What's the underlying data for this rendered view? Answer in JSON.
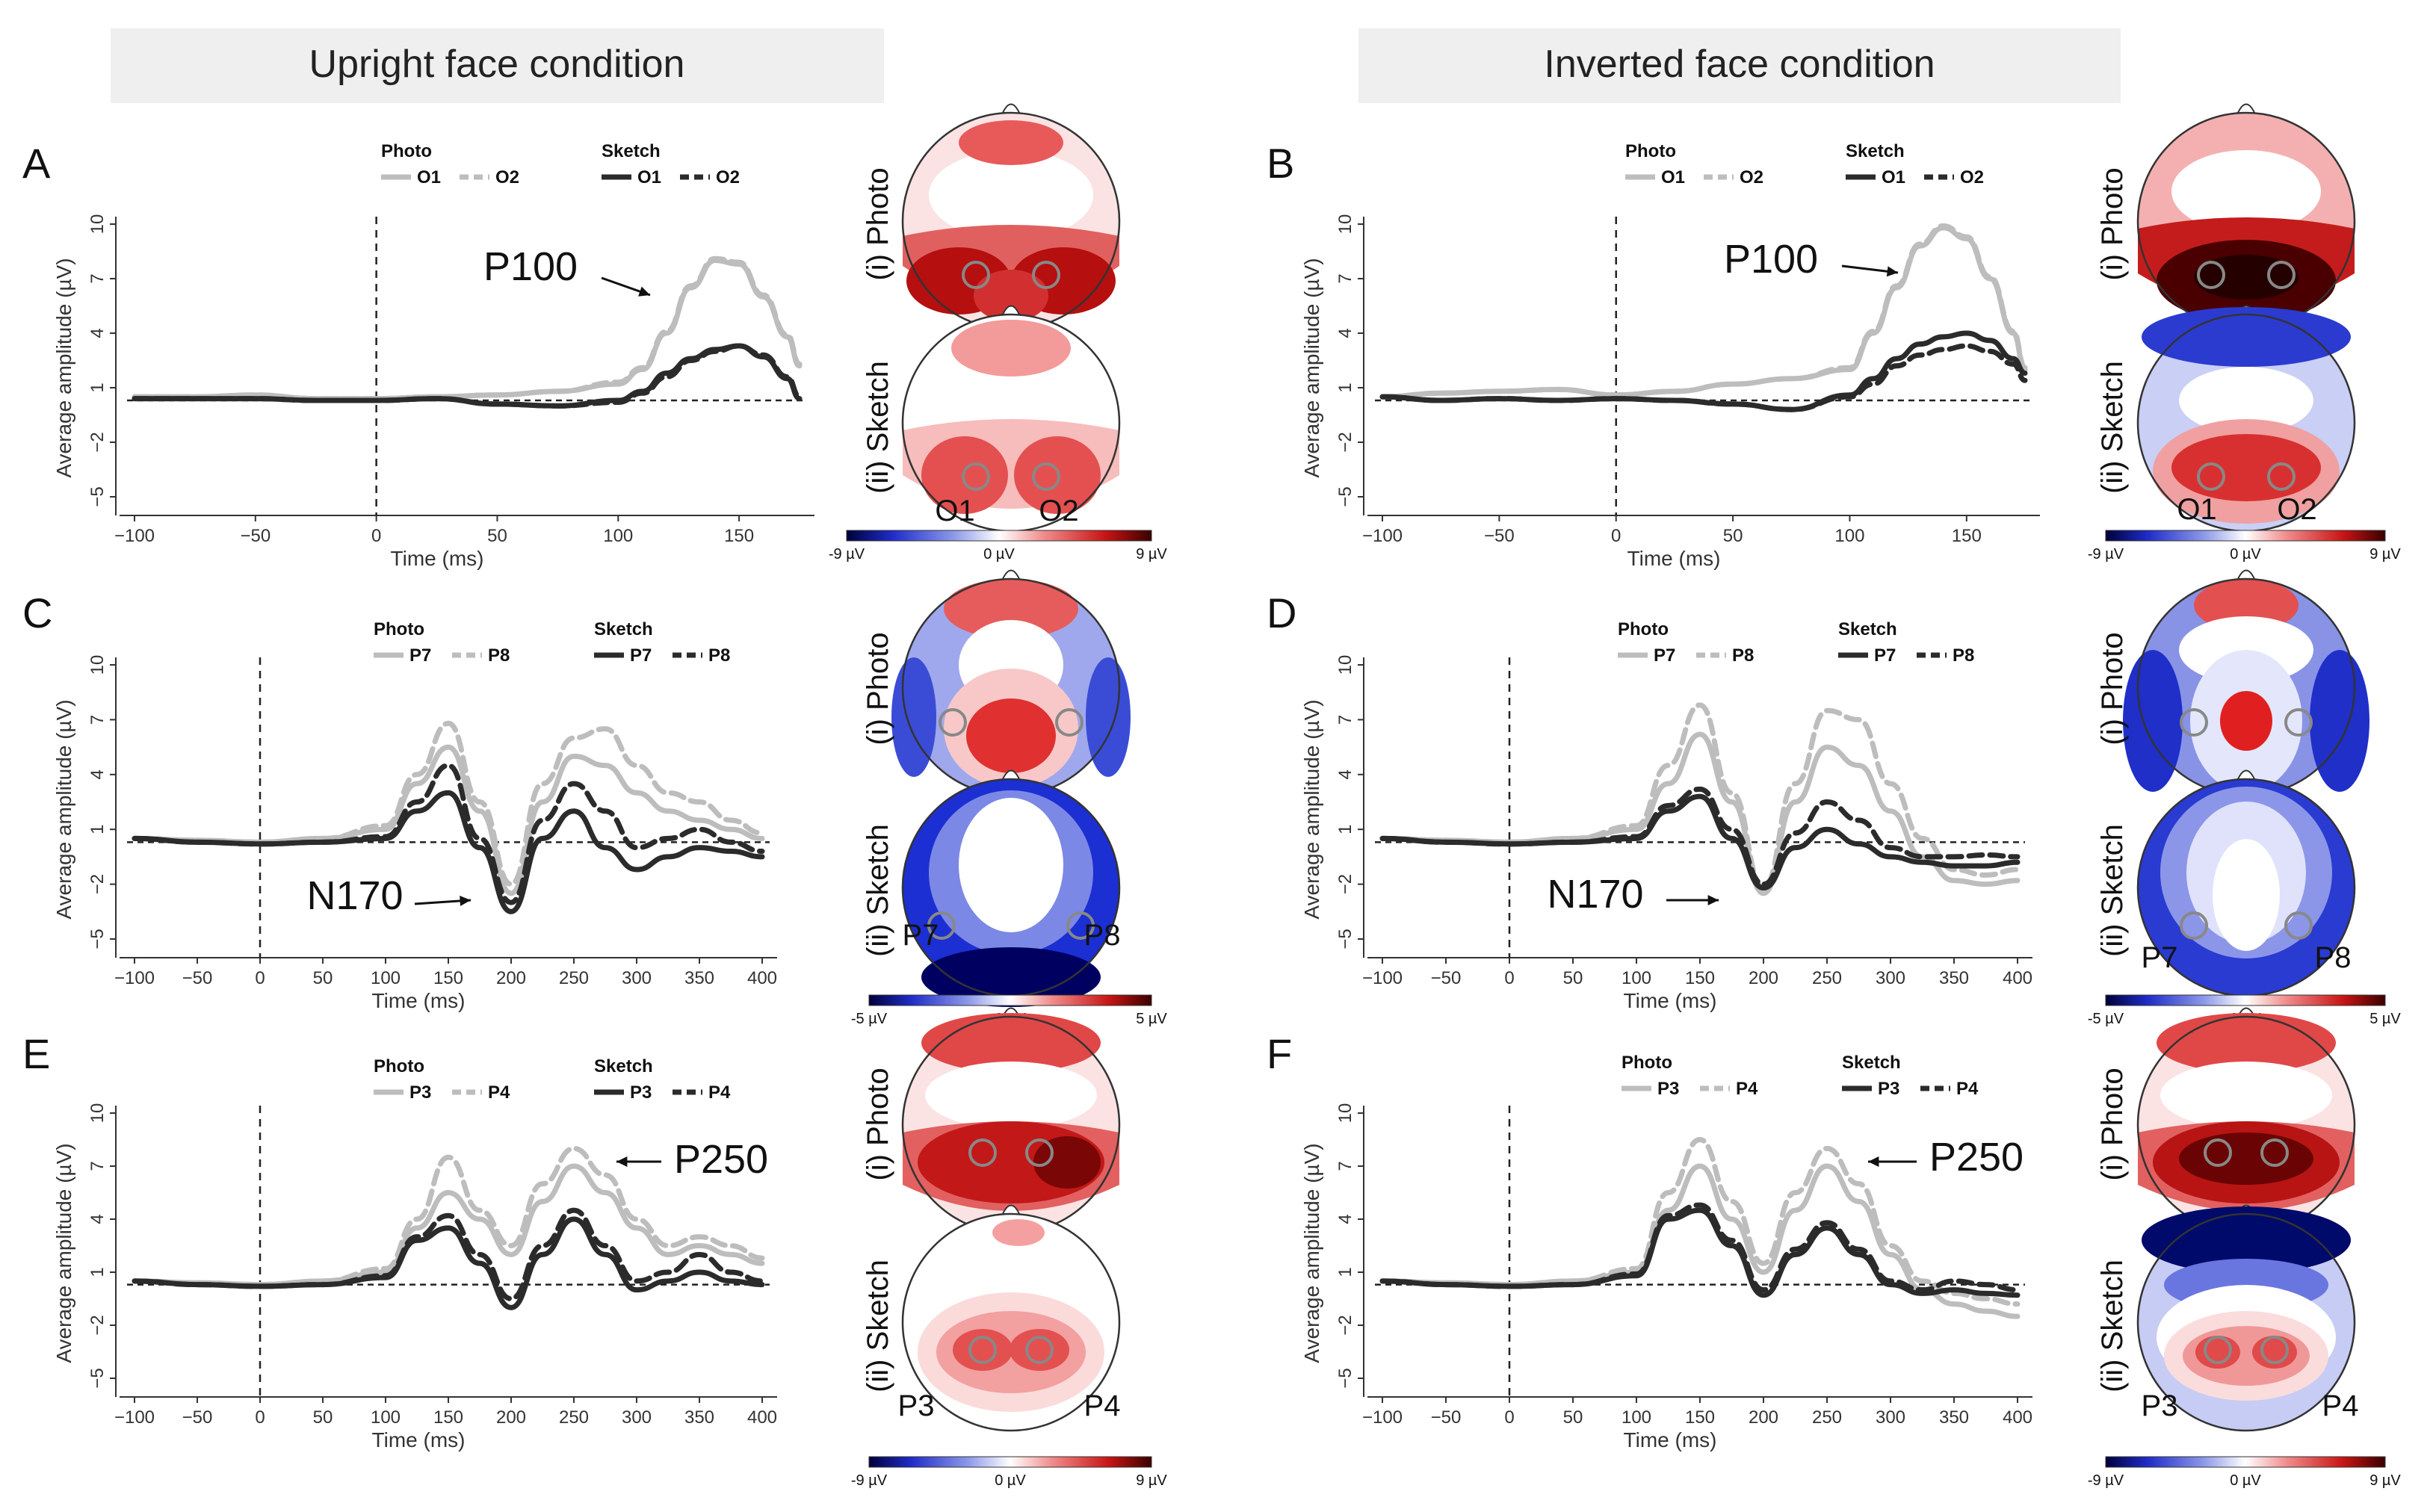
{
  "conditions": [
    "Upright face condition",
    "Inverted face condition"
  ],
  "colorbars": [
    {
      "min": "-9 µV",
      "mid": "0 µV",
      "max": "9 µV"
    },
    {
      "min": "-5 µV",
      "mid": "0 µV",
      "max": "5 µV"
    }
  ],
  "colors": {
    "photo": "#bdbdbd",
    "sketch": "#2b2b2b",
    "condition_band": "#efefef"
  },
  "headmap_labels": {
    "photo": "(i) Photo",
    "sketch": "(ii) Sketch"
  },
  "chart_data": [
    {
      "id": "A",
      "type": "line",
      "condition": "Upright face condition",
      "peak_label": "P100",
      "xlabel": "Time (ms)",
      "ylabel": "Average amplitude  (µV)",
      "xlim": [
        -100,
        175
      ],
      "ylim": [
        -5,
        10
      ],
      "xticks": [
        "-100",
        "-50",
        "0",
        "50",
        "100",
        "150"
      ],
      "yticks": [
        "-5",
        "-2",
        "1",
        "4",
        "7",
        "10"
      ],
      "legend": {
        "group1": "Photo",
        "group2": "Sketch",
        "electrodes": [
          "O1",
          "O2"
        ]
      },
      "electrodes": [
        "O1",
        "O2"
      ],
      "x": [
        -100,
        -75,
        -50,
        -25,
        0,
        25,
        50,
        75,
        100,
        110,
        120,
        130,
        140,
        150,
        160,
        170,
        175
      ],
      "series": [
        {
          "name": "O1",
          "group": "Photo",
          "values": [
            0.5,
            0.5,
            0.6,
            0.4,
            0.4,
            0.5,
            0.6,
            0.8,
            1.2,
            2.0,
            4.0,
            6.5,
            8.0,
            7.8,
            6.0,
            3.8,
            2.2
          ]
        },
        {
          "name": "O2",
          "group": "Photo",
          "values": [
            0.5,
            0.5,
            0.6,
            0.4,
            0.4,
            0.5,
            0.6,
            0.8,
            1.3,
            2.1,
            4.1,
            6.6,
            8.1,
            7.9,
            6.1,
            3.9,
            2.3
          ]
        },
        {
          "name": "O1",
          "group": "Sketch",
          "values": [
            0.4,
            0.4,
            0.4,
            0.3,
            0.3,
            0.4,
            0.1,
            0.0,
            0.3,
            0.8,
            1.8,
            2.6,
            3.1,
            3.3,
            2.7,
            1.5,
            0.4
          ]
        },
        {
          "name": "O2",
          "group": "Sketch",
          "values": [
            0.4,
            0.4,
            0.4,
            0.3,
            0.3,
            0.4,
            0.1,
            0.0,
            0.2,
            0.7,
            1.6,
            2.5,
            3.0,
            3.3,
            2.8,
            1.6,
            0.5
          ]
        }
      ]
    },
    {
      "id": "B",
      "type": "line",
      "condition": "Inverted face condition",
      "peak_label": "P100",
      "xlabel": "Time (ms)",
      "ylabel": "Average amplitude  (µV)",
      "xlim": [
        -100,
        175
      ],
      "ylim": [
        -5,
        10
      ],
      "xticks": [
        "-100",
        "-50",
        "0",
        "50",
        "100",
        "150"
      ],
      "yticks": [
        "-5",
        "-2",
        "1",
        "4",
        "7",
        "10"
      ],
      "legend": {
        "group1": "Photo",
        "group2": "Sketch",
        "electrodes": [
          "O1",
          "O2"
        ]
      },
      "electrodes": [
        "O1",
        "O2"
      ],
      "x": [
        -100,
        -75,
        -50,
        -25,
        0,
        25,
        50,
        75,
        100,
        110,
        120,
        130,
        140,
        150,
        160,
        170,
        175
      ],
      "series": [
        {
          "name": "O1",
          "group": "Photo",
          "values": [
            0.5,
            0.7,
            0.8,
            0.9,
            0.6,
            0.8,
            1.2,
            1.5,
            2.0,
            4.0,
            6.5,
            8.8,
            9.8,
            9.2,
            7.0,
            4.0,
            2.0
          ]
        },
        {
          "name": "O2",
          "group": "Photo",
          "values": [
            0.5,
            0.7,
            0.8,
            0.9,
            0.6,
            0.8,
            1.2,
            1.5,
            2.1,
            4.1,
            6.6,
            8.9,
            9.9,
            9.3,
            7.1,
            4.1,
            2.1
          ]
        },
        {
          "name": "O1",
          "group": "Sketch",
          "values": [
            0.5,
            0.3,
            0.4,
            0.3,
            0.4,
            0.3,
            0.1,
            -0.2,
            0.6,
            1.5,
            2.6,
            3.4,
            3.8,
            4.0,
            3.6,
            2.6,
            1.8
          ]
        },
        {
          "name": "O2",
          "group": "Sketch",
          "values": [
            0.5,
            0.3,
            0.4,
            0.3,
            0.4,
            0.3,
            0.1,
            -0.2,
            0.5,
            1.2,
            2.2,
            2.8,
            3.1,
            3.3,
            3.0,
            2.3,
            1.4
          ]
        }
      ]
    },
    {
      "id": "C",
      "type": "line",
      "condition": "Upright face condition",
      "peak_label": "N170",
      "xlabel": "Time (ms)",
      "ylabel": "Average amplitude  (µV)",
      "xlim": [
        -100,
        400
      ],
      "ylim": [
        -5,
        10
      ],
      "xticks": [
        "-100",
        "-50",
        "0",
        "50",
        "100",
        "150",
        "200",
        "250",
        "300",
        "350",
        "400"
      ],
      "yticks": [
        "-5",
        "-2",
        "1",
        "4",
        "7",
        "10"
      ],
      "legend": {
        "group1": "Photo",
        "group2": "Sketch",
        "electrodes": [
          "P7",
          "P8"
        ]
      },
      "electrodes": [
        "P7",
        "P8"
      ],
      "x": [
        -100,
        -50,
        0,
        50,
        100,
        125,
        150,
        175,
        200,
        225,
        250,
        275,
        300,
        325,
        350,
        375,
        400
      ],
      "series": [
        {
          "name": "P7",
          "group": "Photo",
          "values": [
            0.5,
            0.4,
            0.3,
            0.5,
            1.0,
            3.5,
            5.5,
            2.0,
            -2.5,
            2.5,
            5.0,
            4.5,
            3.0,
            2.0,
            1.5,
            1.0,
            0.5
          ]
        },
        {
          "name": "P8",
          "group": "Photo",
          "values": [
            0.5,
            0.4,
            0.3,
            0.5,
            1.2,
            4.0,
            6.8,
            2.5,
            -2.0,
            3.5,
            6.0,
            6.5,
            4.5,
            3.0,
            2.5,
            1.5,
            0.8
          ]
        },
        {
          "name": "P7",
          "group": "Sketch",
          "values": [
            0.5,
            0.3,
            0.2,
            0.3,
            0.5,
            2.0,
            3.0,
            0.0,
            -3.5,
            0.5,
            2.0,
            0.0,
            -1.2,
            -0.5,
            0.0,
            -0.2,
            -0.5
          ]
        },
        {
          "name": "P8",
          "group": "Sketch",
          "values": [
            0.5,
            0.3,
            0.2,
            0.3,
            0.6,
            2.5,
            4.5,
            0.5,
            -3.0,
            1.5,
            3.5,
            2.0,
            0.0,
            0.5,
            1.0,
            0.3,
            -0.2
          ]
        }
      ]
    },
    {
      "id": "D",
      "type": "line",
      "condition": "Inverted face condition",
      "peak_label": "N170",
      "xlabel": "Time (ms)",
      "ylabel": "Average amplitude  (µV)",
      "xlim": [
        -100,
        400
      ],
      "ylim": [
        -5,
        10
      ],
      "xticks": [
        "-100",
        "-50",
        "0",
        "50",
        "100",
        "150",
        "200",
        "250",
        "300",
        "350",
        "400"
      ],
      "yticks": [
        "-5",
        "-2",
        "1",
        "4",
        "7",
        "10"
      ],
      "legend": {
        "group1": "Photo",
        "group2": "Sketch",
        "electrodes": [
          "P7",
          "P8"
        ]
      },
      "electrodes": [
        "P7",
        "P8"
      ],
      "x": [
        -100,
        -50,
        0,
        50,
        100,
        125,
        150,
        175,
        200,
        225,
        250,
        275,
        300,
        325,
        350,
        375,
        400
      ],
      "series": [
        {
          "name": "P7",
          "group": "Photo",
          "values": [
            0.5,
            0.4,
            0.3,
            0.5,
            1.0,
            3.5,
            6.2,
            2.5,
            -2.5,
            2.5,
            5.5,
            4.5,
            2.0,
            -0.5,
            -1.8,
            -2.0,
            -1.8
          ]
        },
        {
          "name": "P8",
          "group": "Photo",
          "values": [
            0.5,
            0.4,
            0.3,
            0.5,
            1.2,
            4.5,
            7.8,
            3.0,
            -2.2,
            3.5,
            7.5,
            7.0,
            3.5,
            0.5,
            -1.2,
            -1.5,
            -1.2
          ]
        },
        {
          "name": "P7",
          "group": "Sketch",
          "values": [
            0.5,
            0.3,
            0.2,
            0.3,
            0.5,
            2.0,
            2.8,
            0.5,
            -2.2,
            0.0,
            1.0,
            0.2,
            -0.5,
            -0.8,
            -1.0,
            -1.0,
            -0.8
          ]
        },
        {
          "name": "P8",
          "group": "Sketch",
          "values": [
            0.5,
            0.3,
            0.2,
            0.3,
            0.6,
            2.3,
            3.2,
            1.0,
            -2.0,
            0.8,
            2.5,
            1.5,
            0.0,
            -0.5,
            -0.5,
            -0.4,
            -0.5
          ]
        }
      ]
    },
    {
      "id": "E",
      "type": "line",
      "condition": "Upright face condition",
      "peak_label": "P250",
      "xlabel": "Time (ms)",
      "ylabel": "Average amplitude  (µV)",
      "xlim": [
        -100,
        400
      ],
      "ylim": [
        -5,
        10
      ],
      "xticks": [
        "-100",
        "-50",
        "0",
        "50",
        "100",
        "150",
        "200",
        "250",
        "300",
        "350",
        "400"
      ],
      "yticks": [
        "-5",
        "-2",
        "1",
        "4",
        "7",
        "10"
      ],
      "legend": {
        "group1": "Photo",
        "group2": "Sketch",
        "electrodes": [
          "P3",
          "P4"
        ]
      },
      "electrodes": [
        "P3",
        "P4"
      ],
      "x": [
        -100,
        -50,
        0,
        50,
        100,
        125,
        150,
        175,
        200,
        225,
        250,
        275,
        300,
        325,
        350,
        375,
        400
      ],
      "series": [
        {
          "name": "P3",
          "group": "Photo",
          "values": [
            0.5,
            0.4,
            0.3,
            0.5,
            1.0,
            3.5,
            5.5,
            4.0,
            2.0,
            5.0,
            7.0,
            5.5,
            3.5,
            2.0,
            2.5,
            2.0,
            1.5
          ]
        },
        {
          "name": "P4",
          "group": "Photo",
          "values": [
            0.5,
            0.4,
            0.3,
            0.5,
            1.2,
            4.0,
            7.5,
            4.5,
            2.5,
            6.0,
            8.0,
            6.5,
            4.0,
            2.5,
            3.0,
            2.5,
            1.8
          ]
        },
        {
          "name": "P3",
          "group": "Sketch",
          "values": [
            0.5,
            0.3,
            0.2,
            0.3,
            0.7,
            2.8,
            3.5,
            1.5,
            -1.0,
            2.0,
            4.0,
            2.0,
            0.0,
            0.5,
            1.0,
            0.5,
            0.3
          ]
        },
        {
          "name": "P4",
          "group": "Sketch",
          "values": [
            0.5,
            0.3,
            0.2,
            0.3,
            0.8,
            3.0,
            4.2,
            2.0,
            -0.5,
            2.5,
            4.5,
            2.5,
            0.5,
            1.0,
            2.0,
            1.0,
            0.5
          ]
        }
      ]
    },
    {
      "id": "F",
      "type": "line",
      "condition": "Inverted face condition",
      "peak_label": "P250",
      "xlabel": "Time (ms)",
      "ylabel": "Average amplitude  (µV)",
      "xlim": [
        -100,
        400
      ],
      "ylim": [
        -5,
        10
      ],
      "xticks": [
        "-100",
        "-50",
        "0",
        "50",
        "100",
        "150",
        "200",
        "250",
        "300",
        "350",
        "400"
      ],
      "yticks": [
        "-5",
        "-2",
        "1",
        "4",
        "7",
        "10"
      ],
      "legend": {
        "group1": "Photo",
        "group2": "Sketch",
        "electrodes": [
          "P3",
          "P4"
        ]
      },
      "electrodes": [
        "P3",
        "P4"
      ],
      "x": [
        -100,
        -50,
        0,
        50,
        100,
        125,
        150,
        175,
        200,
        225,
        250,
        275,
        300,
        325,
        350,
        375,
        400
      ],
      "series": [
        {
          "name": "P3",
          "group": "Photo",
          "values": [
            0.5,
            0.4,
            0.3,
            0.5,
            1.0,
            4.5,
            7.0,
            4.0,
            1.0,
            4.5,
            7.0,
            5.0,
            2.0,
            0.0,
            -0.8,
            -1.2,
            -1.5
          ]
        },
        {
          "name": "P4",
          "group": "Photo",
          "values": [
            0.5,
            0.4,
            0.3,
            0.5,
            1.2,
            5.5,
            8.5,
            5.0,
            1.5,
            5.5,
            8.0,
            6.0,
            2.5,
            0.5,
            -0.2,
            -0.5,
            -0.8
          ]
        },
        {
          "name": "P3",
          "group": "Sketch",
          "values": [
            0.5,
            0.3,
            0.2,
            0.3,
            0.8,
            4.0,
            4.5,
            2.5,
            -0.3,
            2.0,
            3.5,
            2.0,
            0.3,
            -0.2,
            0.0,
            -0.2,
            -0.3
          ]
        },
        {
          "name": "P4",
          "group": "Sketch",
          "values": [
            0.5,
            0.3,
            0.2,
            0.3,
            0.9,
            4.2,
            4.8,
            2.8,
            0.0,
            2.3,
            3.8,
            2.3,
            0.5,
            0.0,
            0.5,
            0.3,
            0.0
          ]
        }
      ]
    }
  ]
}
